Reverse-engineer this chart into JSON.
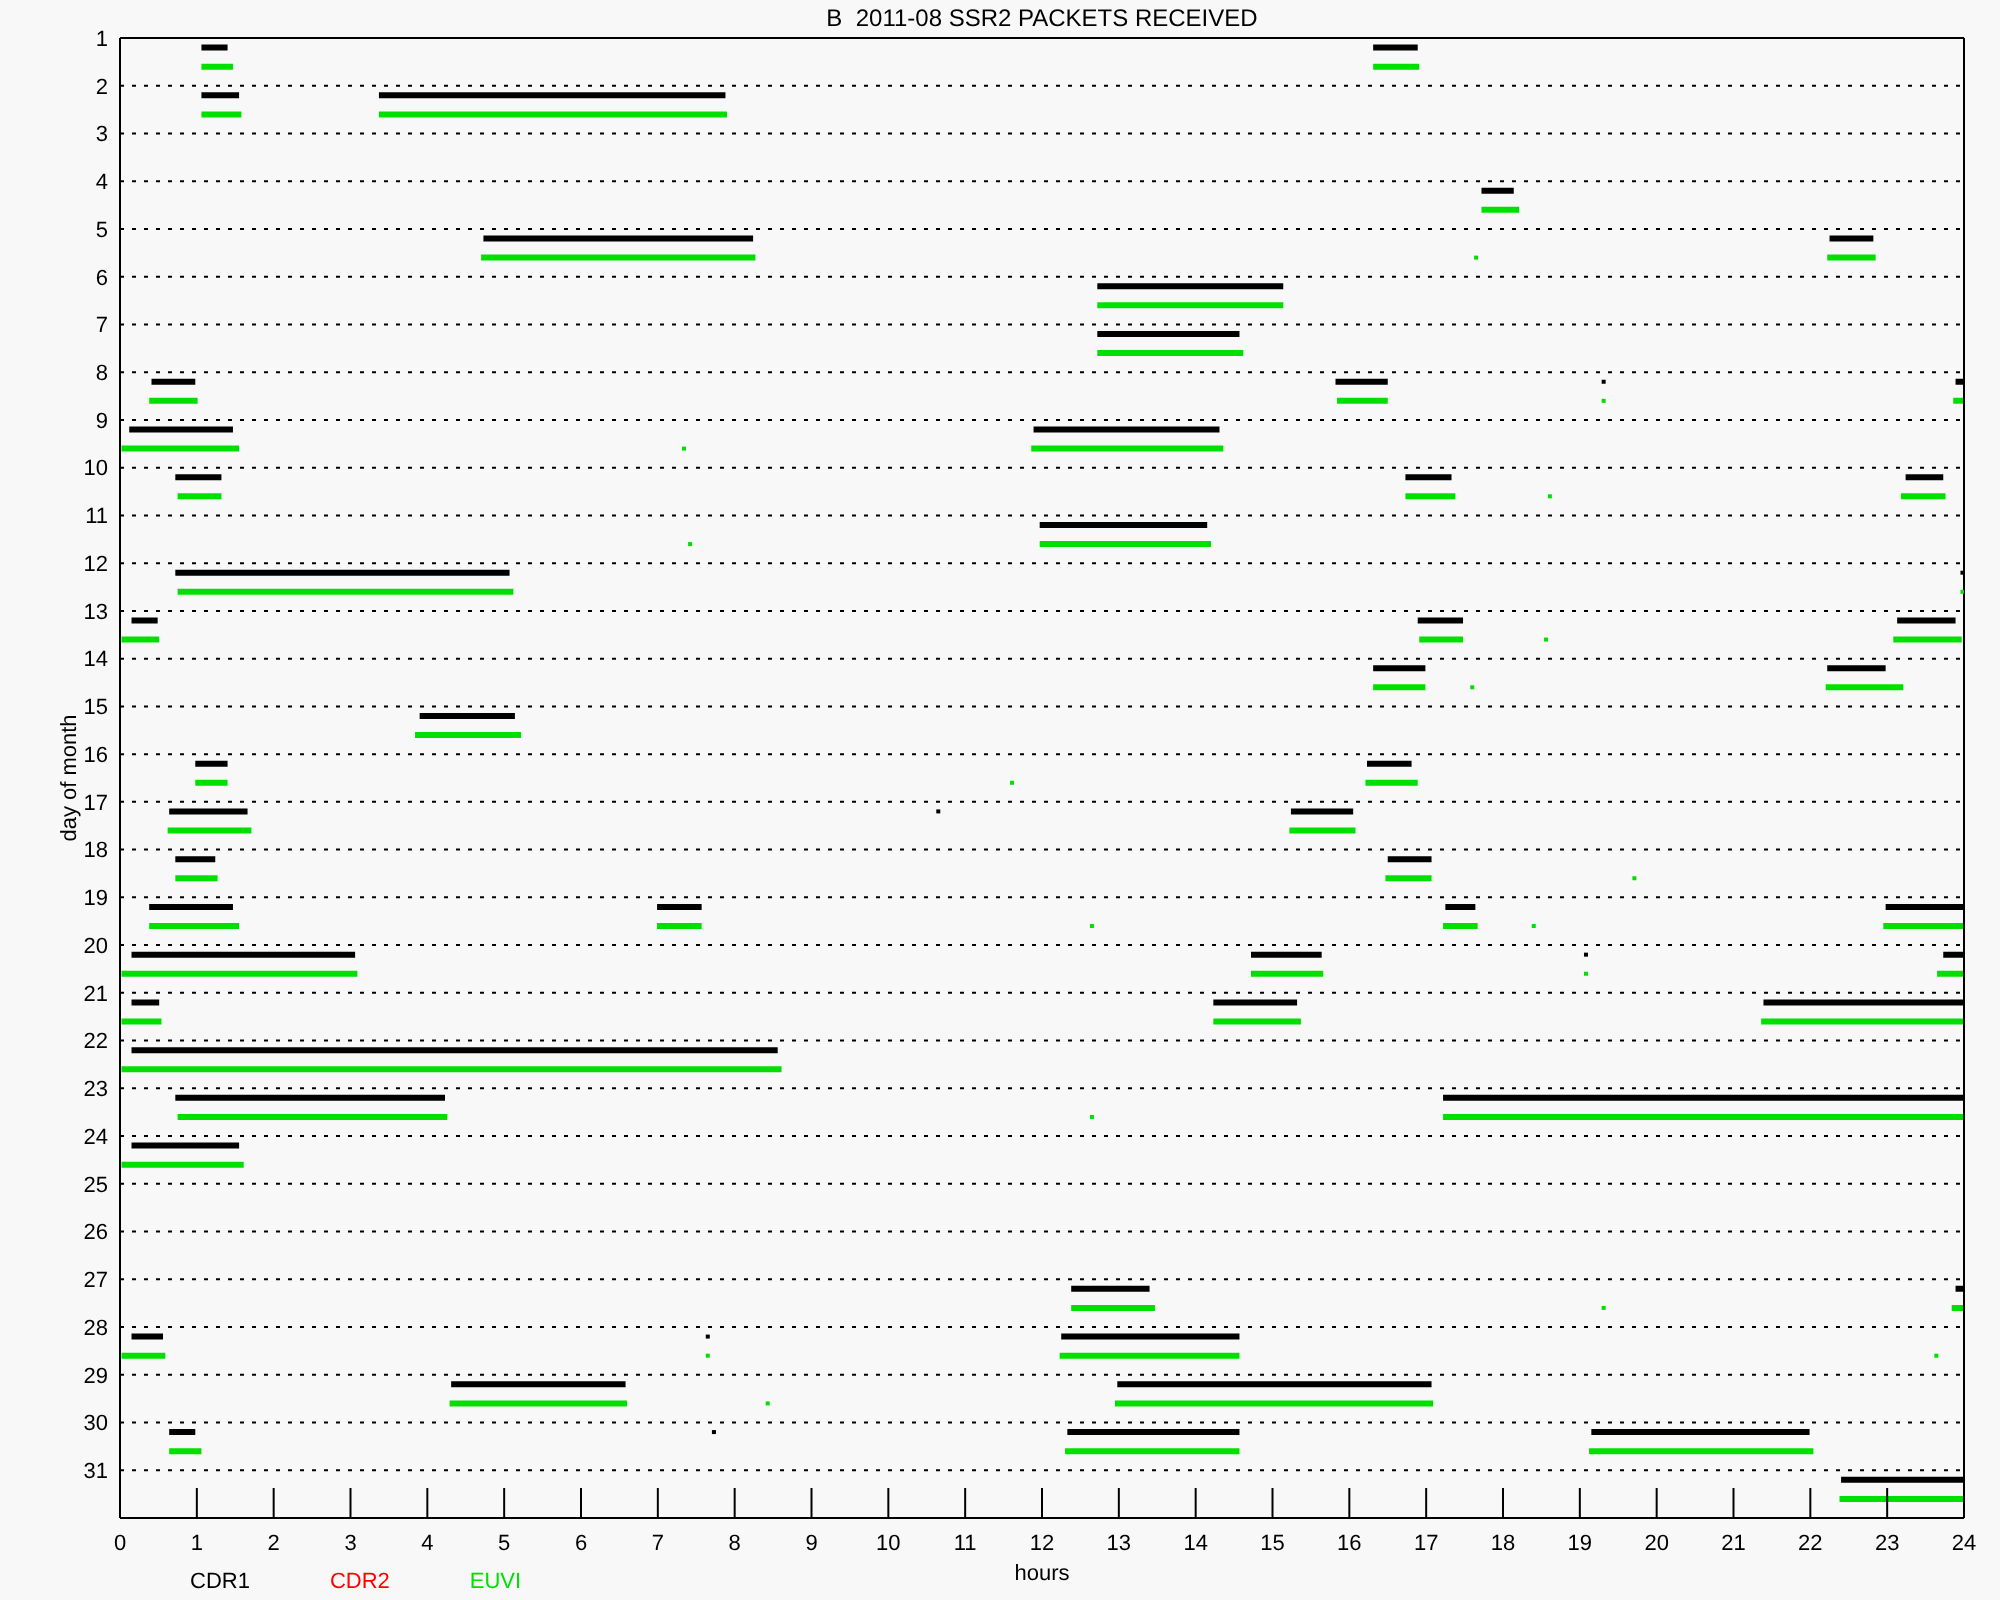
{
  "chart_data": {
    "type": "line",
    "title": "B  2011-08 SSR2 PACKETS RECEIVED",
    "xlabel": "hours",
    "ylabel": "day of month",
    "xlim": [
      0,
      24
    ],
    "xticks": [
      0,
      1,
      2,
      3,
      4,
      5,
      6,
      7,
      8,
      9,
      10,
      11,
      12,
      13,
      14,
      15,
      16,
      17,
      18,
      19,
      20,
      21,
      22,
      23,
      24
    ],
    "ylim": [
      32,
      1
    ],
    "yticks": [
      1,
      2,
      3,
      4,
      5,
      6,
      7,
      8,
      9,
      10,
      11,
      12,
      13,
      14,
      15,
      16,
      17,
      18,
      19,
      20,
      21,
      22,
      23,
      24,
      25,
      26,
      27,
      28,
      29,
      30,
      31
    ],
    "grid": "y",
    "legend": "bottom left",
    "series": [
      {
        "name": "CDR1",
        "color": "#000000",
        "x": [
          1.06,
          1.4,
          null,
          16.31,
          16.89,
          null,
          1.06,
          1.55,
          null,
          3.37,
          7.88,
          null,
          17.72,
          18.14,
          null,
          4.73,
          8.24,
          null,
          22.25,
          22.82,
          null,
          12.72,
          15.14,
          null,
          12.72,
          14.57,
          null,
          0.41,
          0.98,
          null,
          15.82,
          16.5,
          null,
          0.12,
          1.47,
          null,
          11.89,
          14.31,
          null,
          0.72,
          1.32,
          null,
          16.73,
          17.33,
          null,
          23.24,
          23.73,
          null,
          11.97,
          14.15,
          null,
          0.72,
          5.07,
          null,
          0.15,
          0.49,
          null,
          16.89,
          17.48,
          null,
          23.13,
          23.89,
          null,
          16.31,
          16.99,
          null,
          22.22,
          22.98,
          null,
          3.9,
          5.14,
          null,
          0.98,
          1.4,
          null,
          16.23,
          16.81,
          null,
          0.64,
          1.66,
          null,
          15.24,
          16.05,
          null,
          0.72,
          1.24,
          null,
          16.5,
          17.07,
          null,
          0.38,
          1.47,
          null,
          6.99,
          7.57,
          null,
          17.25,
          17.64,
          null,
          22.98,
          24,
          null,
          0.15,
          3.06,
          null,
          14.72,
          15.64,
          null,
          23.73,
          24,
          null,
          0.15,
          0.51,
          null,
          14.23,
          15.32,
          null,
          21.39,
          24,
          null,
          0.15,
          8.56,
          null,
          0.72,
          4.23,
          null,
          17.22,
          24,
          null,
          0.15,
          1.55,
          null,
          12.38,
          13.4,
          null,
          23.89,
          24,
          null,
          0.15,
          0.56,
          null,
          12.25,
          14.57,
          null,
          4.31,
          6.58,
          null,
          12.98,
          17.07,
          null,
          0.64,
          0.98,
          null,
          12.33,
          14.57,
          null,
          19.15,
          21.99,
          null,
          22.4,
          24,
          null
        ],
        "values": [
          1.2,
          1.2,
          null,
          1.2,
          1.2,
          null,
          2.2,
          2.2,
          null,
          2.2,
          2.2,
          null,
          4.2,
          4.2,
          null,
          5.2,
          5.2,
          null,
          5.2,
          5.2,
          null,
          6.2,
          6.2,
          null,
          7.2,
          7.2,
          null,
          8.2,
          8.2,
          null,
          8.2,
          8.2,
          null,
          9.2,
          9.2,
          null,
          9.2,
          9.2,
          null,
          10.2,
          10.2,
          null,
          10.2,
          10.2,
          null,
          10.2,
          10.2,
          null,
          11.2,
          11.2,
          null,
          12.2,
          12.2,
          null,
          13.2,
          13.2,
          null,
          13.2,
          13.2,
          null,
          13.2,
          13.2,
          null,
          14.2,
          14.2,
          null,
          14.2,
          14.2,
          null,
          15.2,
          15.2,
          null,
          16.2,
          16.2,
          null,
          16.2,
          16.2,
          null,
          17.2,
          17.2,
          null,
          17.2,
          17.2,
          null,
          18.2,
          18.2,
          null,
          18.2,
          18.2,
          null,
          19.2,
          19.2,
          null,
          19.2,
          19.2,
          null,
          19.2,
          19.2,
          null,
          19.2,
          19.2,
          null,
          20.2,
          20.2,
          null,
          20.2,
          20.2,
          null,
          20.2,
          20.2,
          null,
          21.2,
          21.2,
          null,
          21.2,
          21.2,
          null,
          21.2,
          21.2,
          null,
          22.2,
          22.2,
          null,
          23.2,
          23.2,
          null,
          23.2,
          23.2,
          null,
          24.2,
          24.2,
          null,
          27.2,
          27.2,
          null,
          27.2,
          27.2,
          null,
          28.2,
          28.2,
          null,
          28.2,
          28.2,
          null,
          29.2,
          29.2,
          null,
          29.2,
          29.2,
          null,
          30.2,
          30.2,
          null,
          30.2,
          30.2,
          null,
          30.2,
          30.2,
          null,
          31.2,
          31.2,
          null
        ]
      },
      {
        "color": "#000000",
        "x": [
          23.89,
          24
        ],
        "values": [
          8.2,
          8.2
        ]
      },
      {
        "name": "CDR2",
        "color": "#ff0000"
      },
      {
        "name": "EUVI",
        "color": "#00e000",
        "x": [
          1.06,
          1.47,
          null,
          16.31,
          16.91,
          null,
          1.06,
          1.58,
          null,
          3.37,
          7.9,
          null,
          17.72,
          18.21,
          null,
          4.7,
          8.27,
          null,
          22.22,
          22.85,
          null,
          12.72,
          15.14,
          null,
          12.72,
          14.62,
          null,
          0.38,
          1.01,
          null,
          15.84,
          16.5,
          null,
          23.86,
          24,
          null,
          0.02,
          1.55,
          null,
          11.86,
          14.36,
          null,
          0.75,
          1.32,
          null,
          16.73,
          17.38,
          null,
          23.18,
          23.76,
          null,
          11.97,
          14.2,
          null,
          0.75,
          5.12,
          null,
          0.02,
          0.51,
          null,
          16.91,
          17.48,
          null,
          23.08,
          23.97,
          null,
          16.31,
          16.99,
          null,
          22.2,
          23.21,
          null,
          3.84,
          5.22,
          null,
          0.98,
          1.4,
          null,
          16.21,
          16.89,
          null,
          0.62,
          1.71,
          null,
          15.22,
          16.08,
          null,
          0.72,
          1.27,
          null,
          16.47,
          17.07,
          null,
          0.38,
          1.55,
          null,
          6.99,
          7.57,
          null,
          17.22,
          17.67,
          null,
          22.95,
          24,
          null,
          0.02,
          3.09,
          null,
          14.72,
          15.66,
          null,
          23.65,
          24,
          null,
          0.02,
          0.54,
          null,
          14.23,
          15.37,
          null,
          21.36,
          24,
          null,
          0.02,
          8.61,
          null,
          0.75,
          4.26,
          null,
          17.22,
          24,
          null,
          0.02,
          1.61,
          null,
          12.38,
          13.47,
          null,
          23.84,
          24,
          null,
          0.02,
          0.59,
          null,
          12.23,
          14.57,
          null,
          4.29,
          6.6,
          null,
          12.95,
          17.09,
          null,
          0.64,
          1.06,
          null,
          12.3,
          14.57,
          null,
          19.12,
          22.04,
          null,
          22.38,
          24,
          null
        ],
        "values": [
          1.6,
          1.6,
          null,
          1.6,
          1.6,
          null,
          2.6,
          2.6,
          null,
          2.6,
          2.6,
          null,
          4.6,
          4.6,
          null,
          5.6,
          5.6,
          null,
          5.6,
          5.6,
          null,
          6.6,
          6.6,
          null,
          7.6,
          7.6,
          null,
          8.6,
          8.6,
          null,
          8.6,
          8.6,
          null,
          8.6,
          8.6,
          null,
          9.6,
          9.6,
          null,
          9.6,
          9.6,
          null,
          10.6,
          10.6,
          null,
          10.6,
          10.6,
          null,
          10.6,
          10.6,
          null,
          11.6,
          11.6,
          null,
          12.6,
          12.6,
          null,
          13.6,
          13.6,
          null,
          13.6,
          13.6,
          null,
          13.6,
          13.6,
          null,
          14.6,
          14.6,
          null,
          14.6,
          14.6,
          null,
          15.6,
          15.6,
          null,
          16.6,
          16.6,
          null,
          16.6,
          16.6,
          null,
          17.6,
          17.6,
          null,
          17.6,
          17.6,
          null,
          18.6,
          18.6,
          null,
          18.6,
          18.6,
          null,
          19.6,
          19.6,
          null,
          19.6,
          19.6,
          null,
          19.6,
          19.6,
          null,
          19.6,
          19.6,
          null,
          20.6,
          20.6,
          null,
          20.6,
          20.6,
          null,
          20.6,
          20.6,
          null,
          21.6,
          21.6,
          null,
          21.6,
          21.6,
          null,
          21.6,
          21.6,
          null,
          22.6,
          22.6,
          null,
          23.6,
          23.6,
          null,
          23.6,
          23.6,
          null,
          24.6,
          24.6,
          null,
          27.6,
          27.6,
          null,
          27.6,
          27.6,
          null,
          28.6,
          28.6,
          null,
          28.6,
          28.6,
          null,
          29.6,
          29.6,
          null,
          29.6,
          29.6,
          null,
          30.6,
          30.6,
          null,
          30.6,
          30.6,
          null,
          30.6,
          30.6,
          null,
          31.6,
          31.6,
          null
        ]
      },
      {
        "type": "scatter",
        "marker": "square",
        "color": "#000000",
        "x": [
          19.31,
          23.98,
          10.65,
          19.08,
          7.65,
          7.73
        ],
        "values": [
          8.2,
          12.2,
          17.2,
          20.2,
          28.2,
          30.2
        ]
      },
      {
        "type": "scatter",
        "marker": "square",
        "color": "#00e000",
        "x": [
          17.65,
          19.31,
          7.34,
          18.61,
          7.42,
          23.98,
          18.56,
          17.6,
          11.61,
          19.71,
          12.65,
          18.4,
          19.08,
          12.65,
          19.31,
          7.65,
          23.64,
          8.43
        ],
        "values": [
          5.6,
          8.6,
          9.6,
          10.6,
          11.6,
          12.6,
          13.6,
          14.6,
          16.6,
          18.6,
          19.6,
          19.6,
          20.6,
          23.6,
          27.6,
          28.6,
          28.6,
          29.6
        ]
      }
    ]
  }
}
